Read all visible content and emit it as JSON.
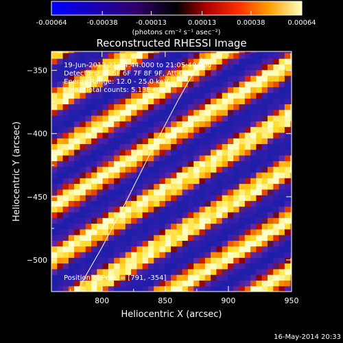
{
  "chart_data": {
    "type": "heatmap",
    "title": "Reconstructed RHESSI Image",
    "xlabel": "Heliocentric X (arcsec)",
    "ylabel": "Heliocentric Y (arcsec)",
    "xlim": [
      760,
      950
    ],
    "ylim": [
      -525,
      -335
    ],
    "x_ticks": [
      800,
      850,
      900,
      950
    ],
    "y_ticks": [
      -350,
      -400,
      -450,
      -500
    ],
    "colorbar": {
      "ticks": [
        "-0.00064",
        "-0.00038",
        "-0.00013",
        "0.00013",
        "0.00038",
        "0.00064"
      ],
      "range": [
        -0.00064,
        0.00064
      ],
      "unit_label": "(photons cm⁻² s⁻¹ asec⁻²)"
    },
    "annotations": [
      "19-Jun-2012 21:04:44.000 to 21:05:40.000",
      "Detectors: 3F 5F 6F 7F 8F 9F, Att 0",
      "Energy Range: 12.0 - 25.0 keV",
      "Clean      Total counts: 5.13E+03"
    ],
    "peak_label": "Position of Peak = [791, -354]",
    "peak_position": [
      791,
      -354
    ],
    "limb_curve": {
      "x": [
        780,
        800,
        820,
        840,
        860,
        879
      ],
      "y": [
        -525,
        -490,
        -452,
        -412,
        -374,
        -340
      ]
    },
    "fringe_pattern": {
      "slope": 0.6,
      "period_arcsec": 41,
      "phase_arcsec": -12
    }
  },
  "footer": {
    "timestamp": "16-May-2014 20:33"
  }
}
